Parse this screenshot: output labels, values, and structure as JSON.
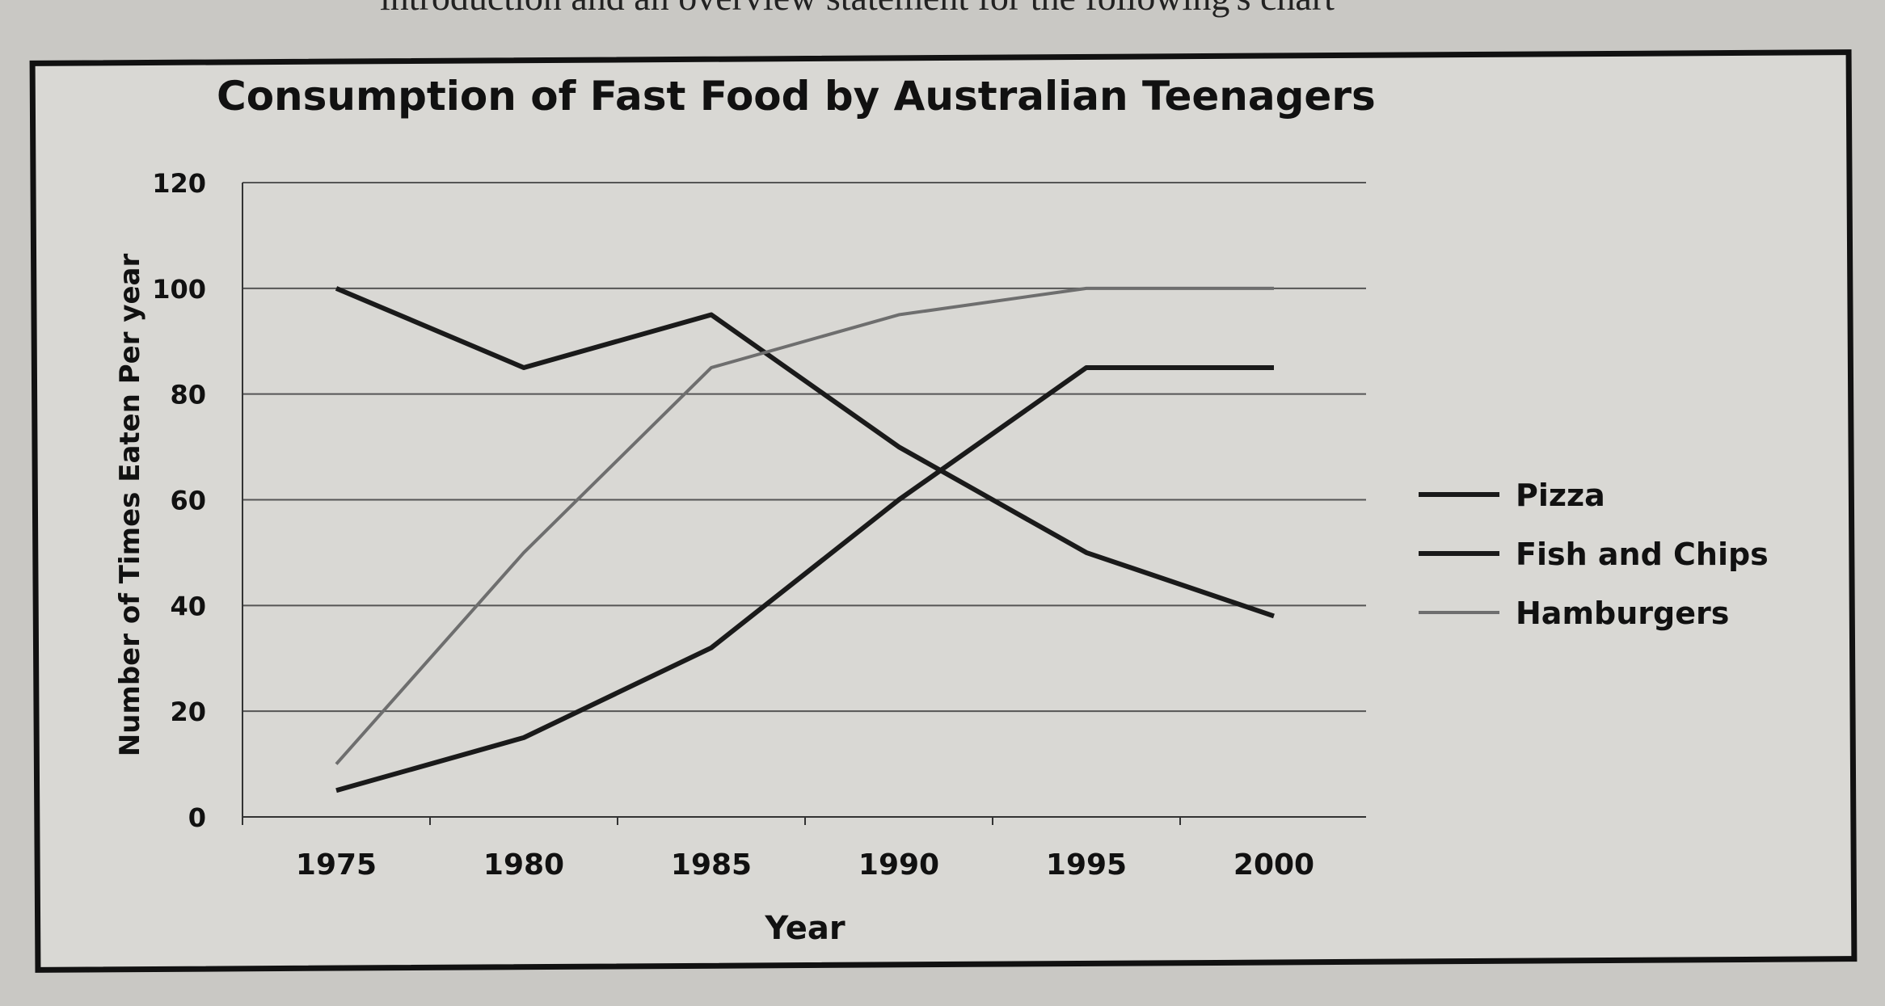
{
  "page": {
    "caption": "introduction and an overview statement for the following's chart"
  },
  "chart_data": {
    "type": "line",
    "title": "Consumption of Fast Food by Australian Teenagers",
    "xlabel": "Year",
    "ylabel": "Number of Times Eaten Per year",
    "x": [
      1975,
      1980,
      1985,
      1990,
      1995,
      2000
    ],
    "xticks": [
      "1975",
      "1980",
      "1985",
      "1990",
      "1995",
      "2000"
    ],
    "yticks": [
      "0",
      "20",
      "40",
      "60",
      "80",
      "100",
      "120"
    ],
    "ylim": [
      0,
      120
    ],
    "grid": true,
    "legend_position": "right",
    "series": [
      {
        "name": "Pizza",
        "values": [
          5,
          15,
          32,
          60,
          85,
          85
        ],
        "color": "#1a1a1a"
      },
      {
        "name": "Fish and Chips",
        "values": [
          100,
          85,
          95,
          70,
          50,
          38
        ],
        "color": "#1a1a1a"
      },
      {
        "name": "Hamburgers",
        "values": [
          10,
          50,
          85,
          95,
          100,
          100
        ],
        "color": "#6e6e6e"
      }
    ]
  }
}
